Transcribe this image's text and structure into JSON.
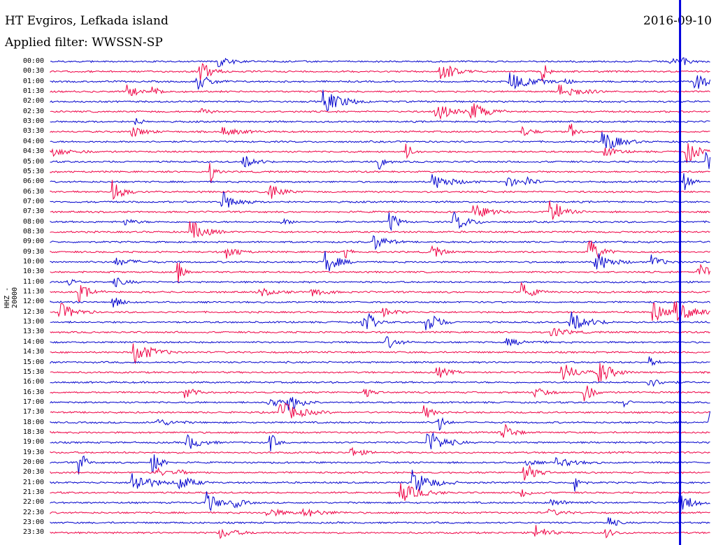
{
  "header": {
    "station": "HT Evgiros, Lefkada island",
    "filter": "Applied filter: WWSSN-SP",
    "date": "2016-09-10"
  },
  "chart_data": {
    "type": "line",
    "ylabel": "HHZ - 20000",
    "rows": [
      "00:00",
      "00:30",
      "01:00",
      "01:30",
      "02:00",
      "02:30",
      "03:00",
      "03:30",
      "04:00",
      "04:30",
      "05:00",
      "05:30",
      "06:00",
      "06:30",
      "07:00",
      "07:30",
      "08:00",
      "08:30",
      "09:00",
      "09:30",
      "10:00",
      "10:30",
      "11:00",
      "11:30",
      "12:00",
      "12:30",
      "13:00",
      "13:30",
      "14:00",
      "14:30",
      "15:00",
      "15:30",
      "16:00",
      "16:30",
      "17:00",
      "17:30",
      "18:00",
      "18:30",
      "19:00",
      "19:30",
      "20:00",
      "20:30",
      "21:00",
      "21:30",
      "22:00",
      "22:30",
      "23:00",
      "23:30"
    ],
    "trace_colors": [
      "#0000cc",
      "#ee0044"
    ],
    "marker_color": "#0000dd",
    "marker_position": 0.954
  }
}
